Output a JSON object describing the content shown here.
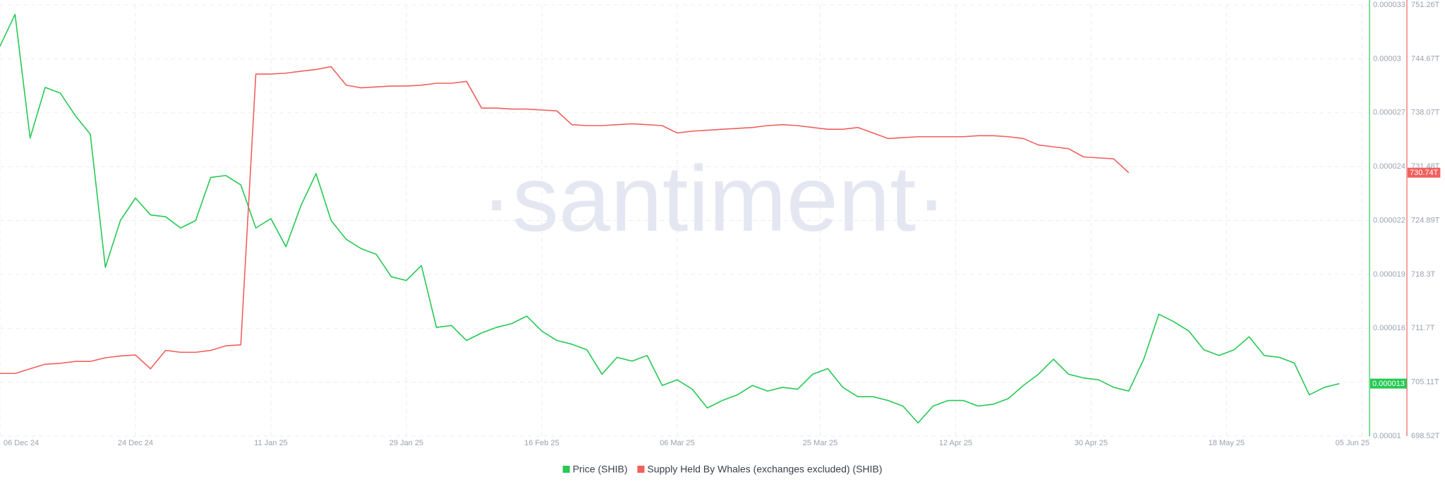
{
  "chart_data": {
    "type": "line",
    "watermark": "·santiment·",
    "x": [
      "2024-12-06",
      "2024-12-08",
      "2024-12-10",
      "2024-12-12",
      "2024-12-14",
      "2024-12-16",
      "2024-12-18",
      "2024-12-20",
      "2024-12-22",
      "2024-12-24",
      "2024-12-26",
      "2024-12-28",
      "2024-12-30",
      "2025-01-01",
      "2025-01-03",
      "2025-01-05",
      "2025-01-07",
      "2025-01-09",
      "2025-01-11",
      "2025-01-13",
      "2025-01-15",
      "2025-01-17",
      "2025-01-19",
      "2025-01-21",
      "2025-01-23",
      "2025-01-25",
      "2025-01-27",
      "2025-01-29",
      "2025-01-31",
      "2025-02-02",
      "2025-02-04",
      "2025-02-06",
      "2025-02-08",
      "2025-02-10",
      "2025-02-12",
      "2025-02-14",
      "2025-02-16",
      "2025-02-18",
      "2025-02-20",
      "2025-02-22",
      "2025-02-24",
      "2025-02-26",
      "2025-02-28",
      "2025-03-02",
      "2025-03-04",
      "2025-03-06",
      "2025-03-08",
      "2025-03-10",
      "2025-03-12",
      "2025-03-14",
      "2025-03-16",
      "2025-03-18",
      "2025-03-20",
      "2025-03-22",
      "2025-03-24",
      "2025-03-26",
      "2025-03-28",
      "2025-03-30",
      "2025-04-01",
      "2025-04-03",
      "2025-04-05",
      "2025-04-07",
      "2025-04-09",
      "2025-04-11",
      "2025-04-13",
      "2025-04-15",
      "2025-04-17",
      "2025-04-19",
      "2025-04-21",
      "2025-04-23",
      "2025-04-25",
      "2025-04-27",
      "2025-04-29",
      "2025-05-01",
      "2025-05-03",
      "2025-05-05",
      "2025-05-07",
      "2025-05-09",
      "2025-05-11",
      "2025-05-13",
      "2025-05-15",
      "2025-05-17",
      "2025-05-19",
      "2025-05-21",
      "2025-05-23",
      "2025-05-25",
      "2025-05-27",
      "2025-05-29",
      "2025-05-31",
      "2025-06-02"
    ],
    "xlim": [
      "2024-12-06",
      "2025-06-06"
    ],
    "xticks": [
      {
        "value": "2024-12-06",
        "label": "06 Dec 24"
      },
      {
        "value": "2024-12-24",
        "label": "24 Dec 24"
      },
      {
        "value": "2025-01-11",
        "label": "11 Jan 25"
      },
      {
        "value": "2025-01-29",
        "label": "29 Jan 25"
      },
      {
        "value": "2025-02-16",
        "label": "16 Feb 25"
      },
      {
        "value": "2025-03-06",
        "label": "06 Mar 25"
      },
      {
        "value": "2025-03-25",
        "label": "25 Mar 25"
      },
      {
        "value": "2025-04-12",
        "label": "12 Apr 25"
      },
      {
        "value": "2025-04-30",
        "label": "30 Apr 25"
      },
      {
        "value": "2025-05-18",
        "label": "18 May 25"
      },
      {
        "value": "2025-06-05",
        "label": "05 Jun 25"
      }
    ],
    "ylim": [
      1e-05,
      3.3e-05
    ],
    "yticks": [
      1e-05,
      {
        "value": 1.2875e-05,
        "label": "0.000013"
      },
      {
        "value": 1.575e-05,
        "label": "0.000016"
      },
      {
        "value": 1.8625e-05,
        "label": "0.000019"
      },
      {
        "value": 2.15e-05,
        "label": "0.000022"
      },
      {
        "value": 2.4375e-05,
        "label": "0.000024"
      },
      {
        "value": 2.725e-05,
        "label": "0.000027"
      },
      {
        "value": 3.0125e-05,
        "label": "0.00003"
      },
      3.3e-05
    ],
    "y2lim": [
      698.52,
      751.26
    ],
    "y2ticks": [
      {
        "value": 698.52,
        "label": "698.52T"
      },
      {
        "value": 705.1125,
        "label": "705.11T"
      },
      {
        "value": 711.705,
        "label": "711.7T"
      },
      {
        "value": 718.2975,
        "label": "718.3T"
      },
      {
        "value": 724.89,
        "label": "724.89T"
      },
      {
        "value": 731.4825,
        "label": "731.48T"
      },
      {
        "value": 738.075,
        "label": "738.07T"
      },
      {
        "value": 744.6675,
        "label": "744.67T"
      },
      {
        "value": 751.26,
        "label": "751.26T"
      }
    ],
    "grid": true,
    "legend": "bottom",
    "series": [
      {
        "name": "Price (SHIB)",
        "color": "#26c953",
        "axis": "y",
        "last_label": "0.000013",
        "values": [
          3.08e-05,
          3.25e-05,
          2.59e-05,
          2.86e-05,
          2.83e-05,
          2.71e-05,
          2.61e-05,
          1.9e-05,
          2.15e-05,
          2.27e-05,
          2.18e-05,
          2.17e-05,
          2.11e-05,
          2.15e-05,
          2.38e-05,
          2.39e-05,
          2.34e-05,
          2.11e-05,
          2.16e-05,
          2.01e-05,
          2.23e-05,
          2.4e-05,
          2.15e-05,
          2.05e-05,
          2e-05,
          1.97e-05,
          1.85e-05,
          1.83e-05,
          1.91e-05,
          1.58e-05,
          1.59e-05,
          1.51e-05,
          1.55e-05,
          1.58e-05,
          1.6e-05,
          1.64e-05,
          1.56e-05,
          1.51e-05,
          1.49e-05,
          1.46e-05,
          1.33e-05,
          1.42e-05,
          1.4e-05,
          1.43e-05,
          1.27e-05,
          1.3e-05,
          1.25e-05,
          1.15e-05,
          1.19e-05,
          1.22e-05,
          1.27e-05,
          1.24e-05,
          1.26e-05,
          1.25e-05,
          1.33e-05,
          1.36e-05,
          1.26e-05,
          1.21e-05,
          1.21e-05,
          1.19e-05,
          1.16e-05,
          1.07e-05,
          1.16e-05,
          1.19e-05,
          1.19e-05,
          1.16e-05,
          1.17e-05,
          1.2e-05,
          1.27e-05,
          1.33e-05,
          1.41e-05,
          1.33e-05,
          1.31e-05,
          1.3e-05,
          1.26e-05,
          1.24e-05,
          1.41e-05,
          1.65e-05,
          1.61e-05,
          1.56e-05,
          1.46e-05,
          1.43e-05,
          1.46e-05,
          1.53e-05,
          1.43e-05,
          1.42e-05,
          1.39e-05,
          1.22e-05,
          1.26e-05,
          1.28e-05
        ]
      },
      {
        "name": "Supply Held By Whales (exchanges excluded) (SHIB)",
        "color": "#f0605d",
        "axis": "y2",
        "last_label": "730.74T",
        "values": [
          706.18,
          706.18,
          706.75,
          707.31,
          707.42,
          707.65,
          707.65,
          708.1,
          708.32,
          708.44,
          706.75,
          709.0,
          708.77,
          708.77,
          709.0,
          709.56,
          709.68,
          742.81,
          742.81,
          742.92,
          743.15,
          743.37,
          743.71,
          741.45,
          741.12,
          741.23,
          741.34,
          741.34,
          741.45,
          741.68,
          741.68,
          741.91,
          738.64,
          738.64,
          738.52,
          738.52,
          738.41,
          738.3,
          736.61,
          736.5,
          736.5,
          736.61,
          736.72,
          736.61,
          736.5,
          735.6,
          735.82,
          735.93,
          736.05,
          736.16,
          736.27,
          736.5,
          736.61,
          736.5,
          736.27,
          736.05,
          736.05,
          736.27,
          735.6,
          734.92,
          735.03,
          735.14,
          735.14,
          735.14,
          735.14,
          735.26,
          735.26,
          735.14,
          734.92,
          734.13,
          733.9,
          733.68,
          732.67,
          732.55,
          732.44,
          730.74,
          null,
          null,
          null,
          null,
          null,
          null,
          null,
          null,
          null,
          null,
          null,
          null,
          null,
          null
        ]
      }
    ]
  }
}
